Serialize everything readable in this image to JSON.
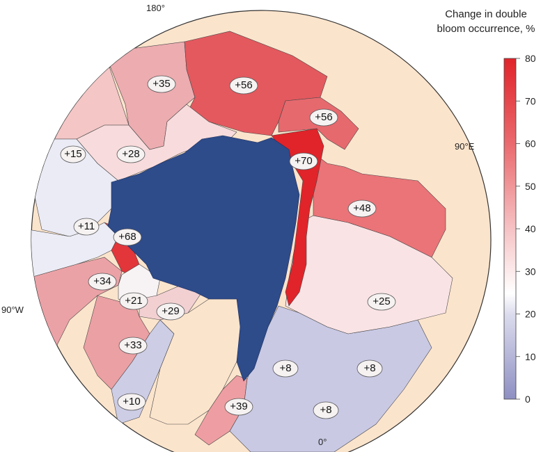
{
  "meridians": {
    "top": "180°",
    "right": "90°E",
    "left": "90°W",
    "bottom": "0°"
  },
  "legend": {
    "title_line1": "Change in double",
    "title_line2": "bloom occurrence, %",
    "ticks": [
      "0",
      "10",
      "20",
      "30",
      "40",
      "50",
      "60",
      "70",
      "80"
    ],
    "scale_min": 0,
    "scale_max": 80,
    "colors": {
      "low": "#8e8fc2",
      "mid": "#ffffff",
      "high": "#e0242a"
    }
  },
  "colors": {
    "ocean_land": "#fbe4cc",
    "ice": "#2e4b8a",
    "coast": "#333333"
  },
  "regions": [
    {
      "id": "beaufort",
      "label": "+15",
      "value": 15
    },
    {
      "id": "chukchi",
      "label": "+28",
      "value": 28
    },
    {
      "id": "bering-north",
      "label": "+35",
      "value": 35
    },
    {
      "id": "east-siberian",
      "label": "+56",
      "value": 56
    },
    {
      "id": "laptev-east",
      "label": "+56",
      "value": 56
    },
    {
      "id": "laptev",
      "label": "+70",
      "value": 70
    },
    {
      "id": "kara",
      "label": "+48",
      "value": 48
    },
    {
      "id": "barents",
      "label": "+25",
      "value": 25
    },
    {
      "id": "norwegian-east",
      "label": "+8",
      "value": 8
    },
    {
      "id": "norwegian",
      "label": "+8",
      "value": 8
    },
    {
      "id": "greenland-sea",
      "label": "+8",
      "value": 8
    },
    {
      "id": "greenland-east",
      "label": "+39",
      "value": 39
    },
    {
      "id": "labrador",
      "label": "+10",
      "value": 10
    },
    {
      "id": "baffin",
      "label": "+33",
      "value": 33
    },
    {
      "id": "baffin-north",
      "label": "+29",
      "value": 29
    },
    {
      "id": "lancaster",
      "label": "+21",
      "value": 21
    },
    {
      "id": "hudson",
      "label": "+34",
      "value": 34
    },
    {
      "id": "archipelago",
      "label": "+11",
      "value": 11
    },
    {
      "id": "queen-elizabeth",
      "label": "+68",
      "value": 68
    }
  ]
}
